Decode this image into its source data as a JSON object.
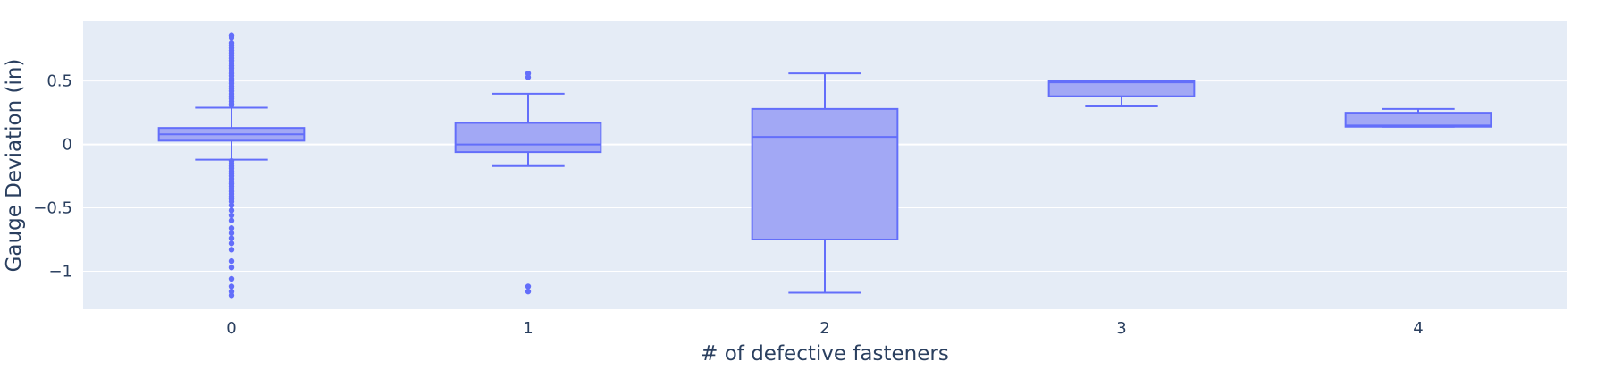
{
  "chart_data": {
    "type": "box",
    "title": "",
    "xlabel": "# of defective fasteners",
    "ylabel": "Gauge Deviation (in)",
    "categories": [
      "0",
      "1",
      "2",
      "3",
      "4"
    ],
    "ylim": [
      -1.3,
      0.97
    ],
    "yticks": [
      0.5,
      0,
      -0.5,
      -1
    ],
    "ytick_labels": [
      "0.5",
      "0",
      "−0.5",
      "−1"
    ],
    "grid": true,
    "colors": {
      "plot_bg": "#e5ecf6",
      "grid": "#ffffff",
      "box_line": "#636efa",
      "box_fill": "#a2a8f5",
      "text": "#2a3f5f"
    },
    "boxes": [
      {
        "category": "0",
        "q1": 0.03,
        "median": 0.08,
        "q3": 0.13,
        "whisker_low": -0.12,
        "whisker_high": 0.29,
        "outliers": [
          0.86,
          0.84,
          0.8,
          0.78,
          0.76,
          0.74,
          0.72,
          0.7,
          0.68,
          0.66,
          0.64,
          0.62,
          0.6,
          0.58,
          0.56,
          0.54,
          0.52,
          0.5,
          0.48,
          0.46,
          0.44,
          0.42,
          0.4,
          0.38,
          0.36,
          0.34,
          0.32,
          0.31,
          -0.13,
          -0.15,
          -0.17,
          -0.19,
          -0.21,
          -0.23,
          -0.25,
          -0.27,
          -0.29,
          -0.31,
          -0.33,
          -0.35,
          -0.37,
          -0.39,
          -0.41,
          -0.43,
          -0.45,
          -0.48,
          -0.52,
          -0.56,
          -0.6,
          -0.66,
          -0.7,
          -0.74,
          -0.78,
          -0.83,
          -0.92,
          -0.97,
          -1.06,
          -1.12,
          -1.16,
          -1.19
        ]
      },
      {
        "category": "1",
        "q1": -0.06,
        "median": 0.0,
        "q3": 0.17,
        "whisker_low": -0.17,
        "whisker_high": 0.4,
        "outliers": [
          0.56,
          0.53,
          -1.12,
          -1.16
        ]
      },
      {
        "category": "2",
        "q1": -0.75,
        "median": 0.06,
        "q3": 0.28,
        "whisker_low": -1.17,
        "whisker_high": 0.56,
        "outliers": []
      },
      {
        "category": "3",
        "q1": 0.38,
        "median": 0.49,
        "q3": 0.5,
        "whisker_low": 0.3,
        "whisker_high": 0.5,
        "outliers": []
      },
      {
        "category": "4",
        "q1": 0.14,
        "median": 0.15,
        "q3": 0.25,
        "whisker_low": 0.14,
        "whisker_high": 0.28,
        "outliers": []
      }
    ]
  }
}
